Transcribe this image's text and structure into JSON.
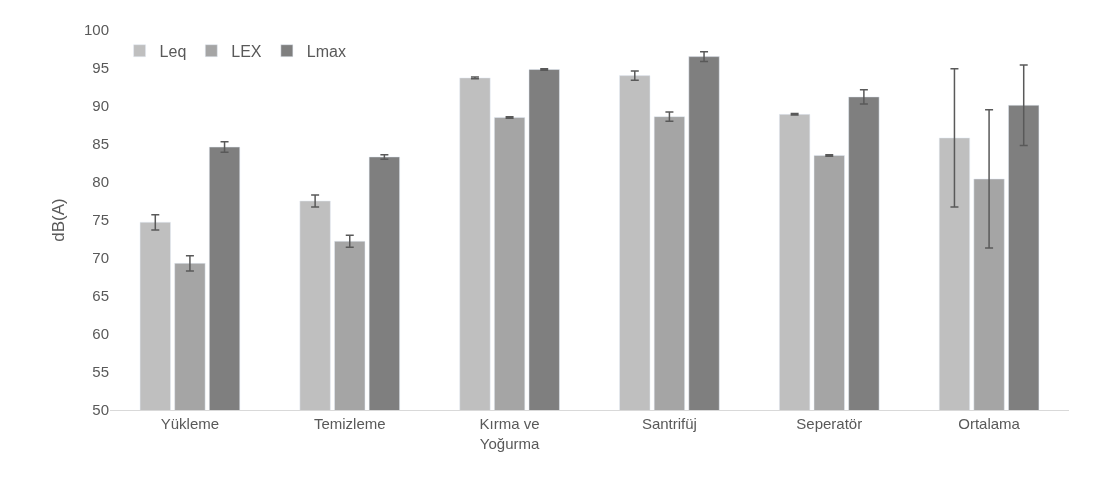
{
  "chart_data": {
    "type": "bar",
    "ylabel": "dB(A)",
    "categories": [
      "Yükleme",
      "Temizleme",
      "Kırma ve Yoğurma",
      "Santrifüj",
      "Seperatör",
      "Ortalama"
    ],
    "series": [
      {
        "name": "Leq",
        "color": "#bfbfbf",
        "values": [
          74.7,
          77.5,
          93.7,
          94.0,
          88.9,
          85.8
        ],
        "errors": [
          1.0,
          0.8,
          0.1,
          0.6,
          0.1,
          9.1
        ]
      },
      {
        "name": "LEX",
        "color": "#a5a5a5",
        "values": [
          69.3,
          72.2,
          88.5,
          88.6,
          83.5,
          80.4
        ],
        "errors": [
          1.0,
          0.8,
          0.1,
          0.6,
          0.1,
          9.1
        ]
      },
      {
        "name": "Lmax",
        "color": "#7f7f7f",
        "values": [
          84.6,
          83.3,
          94.8,
          96.5,
          91.2,
          90.1
        ],
        "errors": [
          0.7,
          0.3,
          0.1,
          0.65,
          0.95,
          5.3
        ]
      }
    ],
    "ylim": [
      50,
      100
    ],
    "yticks": [
      50,
      55,
      60,
      65,
      70,
      75,
      80,
      85,
      90,
      95,
      100
    ],
    "grid": false,
    "legend": "top left"
  }
}
